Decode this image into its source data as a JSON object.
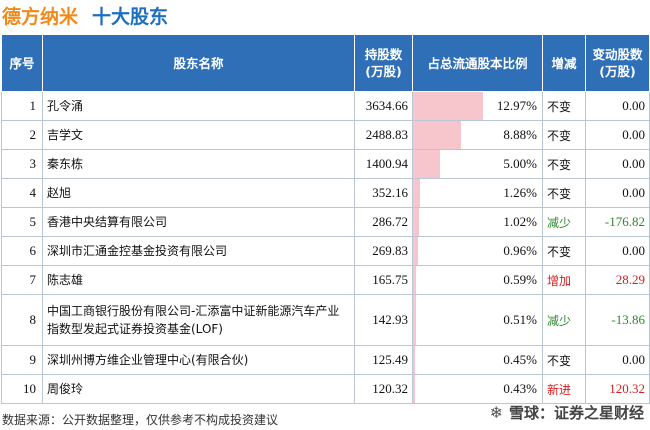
{
  "header": {
    "company": "德方纳米",
    "section": "十大股东"
  },
  "columns": [
    "序号",
    "股东名称",
    "持股数\n(万股)",
    "占总流通股本比例",
    "增减",
    "变动股数\n(万股)"
  ],
  "chart_data": {
    "type": "table",
    "rows": [
      {
        "idx": "1",
        "name": "孔令涌",
        "shares": "3634.66",
        "ratio": 12.97,
        "ratio_label": "12.97%",
        "status": "不变",
        "status_kind": "same",
        "change": "0.00",
        "change_kind": "zero"
      },
      {
        "idx": "2",
        "name": "吉学文",
        "shares": "2488.83",
        "ratio": 8.88,
        "ratio_label": "8.88%",
        "status": "不变",
        "status_kind": "same",
        "change": "0.00",
        "change_kind": "zero"
      },
      {
        "idx": "3",
        "name": "秦东栋",
        "shares": "1400.94",
        "ratio": 5.0,
        "ratio_label": "5.00%",
        "status": "不变",
        "status_kind": "same",
        "change": "0.00",
        "change_kind": "zero"
      },
      {
        "idx": "4",
        "name": "赵旭",
        "shares": "352.16",
        "ratio": 1.26,
        "ratio_label": "1.26%",
        "status": "不变",
        "status_kind": "same",
        "change": "0.00",
        "change_kind": "zero"
      },
      {
        "idx": "5",
        "name": "香港中央结算有限公司",
        "shares": "286.72",
        "ratio": 1.02,
        "ratio_label": "1.02%",
        "status": "减少",
        "status_kind": "down",
        "change": "-176.82",
        "change_kind": "neg"
      },
      {
        "idx": "6",
        "name": "深圳市汇通金控基金投资有限公司",
        "shares": "269.83",
        "ratio": 0.96,
        "ratio_label": "0.96%",
        "status": "不变",
        "status_kind": "same",
        "change": "0.00",
        "change_kind": "zero"
      },
      {
        "idx": "7",
        "name": "陈志雄",
        "shares": "165.75",
        "ratio": 0.59,
        "ratio_label": "0.59%",
        "status": "增加",
        "status_kind": "up",
        "change": "28.29",
        "change_kind": "pos"
      },
      {
        "idx": "8",
        "name": "中国工商银行股份有限公司-汇添富中证新能源汽车产业指数型发起式证券投资基金(LOF)",
        "shares": "142.93",
        "ratio": 0.51,
        "ratio_label": "0.51%",
        "status": "减少",
        "status_kind": "down",
        "change": "-13.86",
        "change_kind": "neg",
        "tall": true
      },
      {
        "idx": "9",
        "name": "深圳州博方维企业管理中心(有限合伙)",
        "shares": "125.49",
        "ratio": 0.45,
        "ratio_label": "0.45%",
        "status": "不变",
        "status_kind": "same",
        "change": "0.00",
        "change_kind": "zero"
      },
      {
        "idx": "10",
        "name": "周俊玲",
        "shares": "120.32",
        "ratio": 0.43,
        "ratio_label": "0.43%",
        "status": "新进",
        "status_kind": "up",
        "change": "120.32",
        "change_kind": "pos"
      }
    ],
    "ratio_max": 12.97
  },
  "footer": {
    "source": "数据来源：公开数据整理，仅供参考不构成投资建议"
  },
  "brand": {
    "label": "雪球：证券之星财经",
    "icon": "snowball-icon"
  }
}
